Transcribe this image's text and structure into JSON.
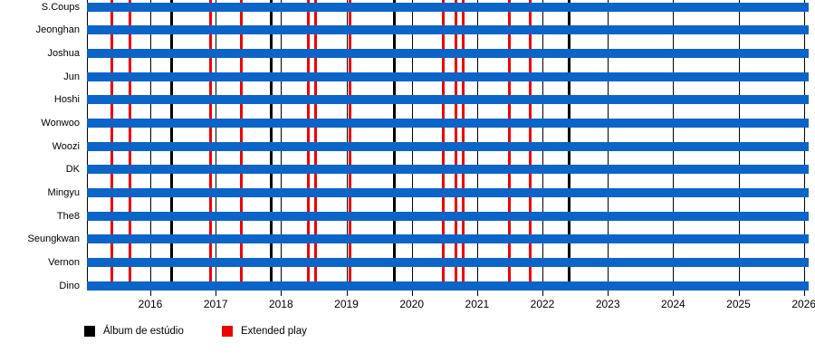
{
  "chart_data": {
    "type": "timeline",
    "title": "",
    "categories": [
      "S.Coups",
      "Jeonghan",
      "Joshua",
      "Jun",
      "Hoshi",
      "Wonwoo",
      "Woozi",
      "DK",
      "Mingyu",
      "The8",
      "Seungkwan",
      "Vernon",
      "Dino"
    ],
    "x_axis": {
      "ticks": [
        2016,
        2017,
        2018,
        2019,
        2020,
        2021,
        2022,
        2023,
        2024,
        2025,
        2026
      ],
      "range": [
        2015.03,
        2026.07
      ],
      "grid": true
    },
    "bar_span": {
      "start": 2015.03,
      "end": 2026.07
    },
    "series": [
      {
        "name": "Álbum de estúdio",
        "marker": "vertical-line",
        "color": "#000000",
        "x": [
          2016.33,
          2017.85,
          2019.73,
          2022.41
        ]
      },
      {
        "name": "Extended play",
        "marker": "vertical-line",
        "color": "#ee0000",
        "x": [
          2015.41,
          2015.69,
          2016.92,
          2017.39,
          2018.42,
          2018.53,
          2019.06,
          2020.48,
          2020.67,
          2020.79,
          2021.49,
          2021.81
        ]
      }
    ],
    "bar_color": "#0b65c8",
    "grid_color": "#000000",
    "legend_position": "bottom"
  }
}
